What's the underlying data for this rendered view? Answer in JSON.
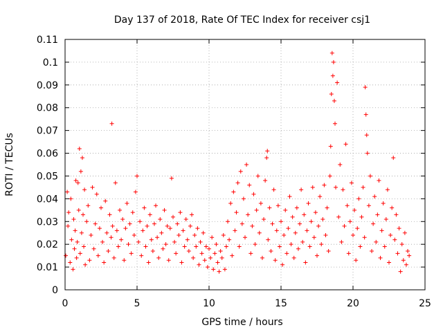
{
  "chart_data": {
    "type": "scatter",
    "title": "Day 137 of 2018, Rate Of TEC Index for receiver csj1",
    "xlabel": "GPS time / hours",
    "ylabel": "ROTI / TECUs",
    "xlim": [
      0,
      25
    ],
    "ylim": [
      0,
      0.11
    ],
    "x_ticks": [
      0,
      5,
      10,
      15,
      20,
      25
    ],
    "x_tick_labels": [
      "0",
      "5",
      "10",
      "15",
      "20",
      "25"
    ],
    "y_ticks": [
      0,
      0.01,
      0.02,
      0.03,
      0.04,
      0.05,
      0.06,
      0.07,
      0.08,
      0.09,
      0.1,
      0.11
    ],
    "y_tick_labels": [
      "0",
      "0.01",
      "0.02",
      "0.03",
      "0.04",
      "0.05",
      "0.06",
      "0.07",
      "0.08",
      "0.09",
      "0.1",
      "0.11"
    ],
    "grid": true,
    "marker": "plus",
    "color": "#ff0000",
    "series": [
      {
        "name": "ROTI",
        "points": [
          [
            0.05,
            0.015
          ],
          [
            0.15,
            0.043
          ],
          [
            0.2,
            0.028
          ],
          [
            0.25,
            0.034
          ],
          [
            0.35,
            0.012
          ],
          [
            0.4,
            0.04
          ],
          [
            0.45,
            0.022
          ],
          [
            0.55,
            0.009
          ],
          [
            0.6,
            0.031
          ],
          [
            0.65,
            0.018
          ],
          [
            0.7,
            0.026
          ],
          [
            0.75,
            0.048
          ],
          [
            0.8,
            0.014
          ],
          [
            0.85,
            0.021
          ],
          [
            0.9,
            0.047
          ],
          [
            0.95,
            0.035
          ],
          [
            1.0,
            0.062
          ],
          [
            1.05,
            0.016
          ],
          [
            1.1,
            0.052
          ],
          [
            1.15,
            0.025
          ],
          [
            1.2,
            0.058
          ],
          [
            1.25,
            0.033
          ],
          [
            1.3,
            0.019
          ],
          [
            1.35,
            0.044
          ],
          [
            1.4,
            0.011
          ],
          [
            1.5,
            0.03
          ],
          [
            1.6,
            0.037
          ],
          [
            1.7,
            0.013
          ],
          [
            1.8,
            0.024
          ],
          [
            1.9,
            0.045
          ],
          [
            2.0,
            0.018
          ],
          [
            2.1,
            0.029
          ],
          [
            2.2,
            0.042
          ],
          [
            2.3,
            0.015
          ],
          [
            2.4,
            0.027
          ],
          [
            2.5,
            0.036
          ],
          [
            2.6,
            0.021
          ],
          [
            2.7,
            0.012
          ],
          [
            2.8,
            0.039
          ],
          [
            2.9,
            0.025
          ],
          [
            3.0,
            0.017
          ],
          [
            3.1,
            0.033
          ],
          [
            3.2,
            0.023
          ],
          [
            3.25,
            0.073
          ],
          [
            3.3,
            0.028
          ],
          [
            3.4,
            0.014
          ],
          [
            3.5,
            0.047
          ],
          [
            3.6,
            0.026
          ],
          [
            3.7,
            0.019
          ],
          [
            3.8,
            0.035
          ],
          [
            3.9,
            0.022
          ],
          [
            4.0,
            0.031
          ],
          [
            4.1,
            0.013
          ],
          [
            4.2,
            0.027
          ],
          [
            4.3,
            0.038
          ],
          [
            4.4,
            0.02
          ],
          [
            4.5,
            0.029
          ],
          [
            4.6,
            0.016
          ],
          [
            4.7,
            0.034
          ],
          [
            4.8,
            0.024
          ],
          [
            4.9,
            0.043
          ],
          [
            5.0,
            0.05
          ],
          [
            5.1,
            0.021
          ],
          [
            5.2,
            0.03
          ],
          [
            5.3,
            0.015
          ],
          [
            5.4,
            0.026
          ],
          [
            5.5,
            0.036
          ],
          [
            5.6,
            0.019
          ],
          [
            5.7,
            0.028
          ],
          [
            5.8,
            0.012
          ],
          [
            5.9,
            0.033
          ],
          [
            6.0,
            0.022
          ],
          [
            6.1,
            0.017
          ],
          [
            6.2,
            0.029
          ],
          [
            6.3,
            0.037
          ],
          [
            6.4,
            0.023
          ],
          [
            6.5,
            0.014
          ],
          [
            6.6,
            0.031
          ],
          [
            6.7,
            0.025
          ],
          [
            6.8,
            0.018
          ],
          [
            6.9,
            0.035
          ],
          [
            7.0,
            0.02
          ],
          [
            7.1,
            0.028
          ],
          [
            7.2,
            0.013
          ],
          [
            7.3,
            0.027
          ],
          [
            7.4,
            0.049
          ],
          [
            7.5,
            0.032
          ],
          [
            7.6,
            0.021
          ],
          [
            7.7,
            0.016
          ],
          [
            7.8,
            0.029
          ],
          [
            7.9,
            0.024
          ],
          [
            8.0,
            0.034
          ],
          [
            8.1,
            0.012
          ],
          [
            8.2,
            0.026
          ],
          [
            8.3,
            0.019
          ],
          [
            8.4,
            0.031
          ],
          [
            8.5,
            0.022
          ],
          [
            8.6,
            0.017
          ],
          [
            8.7,
            0.028
          ],
          [
            8.8,
            0.033
          ],
          [
            8.9,
            0.014
          ],
          [
            9.0,
            0.024
          ],
          [
            9.1,
            0.019
          ],
          [
            9.2,
            0.027
          ],
          [
            9.3,
            0.011
          ],
          [
            9.4,
            0.021
          ],
          [
            9.5,
            0.016
          ],
          [
            9.6,
            0.025
          ],
          [
            9.7,
            0.013
          ],
          [
            9.8,
            0.019
          ],
          [
            9.9,
            0.01
          ],
          [
            10.0,
            0.018
          ],
          [
            10.1,
            0.014
          ],
          [
            10.2,
            0.023
          ],
          [
            10.3,
            0.009
          ],
          [
            10.4,
            0.016
          ],
          [
            10.5,
            0.02
          ],
          [
            10.6,
            0.012
          ],
          [
            10.7,
            0.008
          ],
          [
            10.8,
            0.017
          ],
          [
            10.9,
            0.014
          ],
          [
            11.0,
            0.024
          ],
          [
            11.1,
            0.009
          ],
          [
            11.2,
            0.019
          ],
          [
            11.3,
            0.03
          ],
          [
            11.4,
            0.022
          ],
          [
            11.5,
            0.038
          ],
          [
            11.6,
            0.015
          ],
          [
            11.7,
            0.043
          ],
          [
            11.8,
            0.026
          ],
          [
            11.9,
            0.034
          ],
          [
            12.0,
            0.047
          ],
          [
            12.1,
            0.019
          ],
          [
            12.2,
            0.052
          ],
          [
            12.3,
            0.029
          ],
          [
            12.4,
            0.04
          ],
          [
            12.5,
            0.023
          ],
          [
            12.6,
            0.055
          ],
          [
            12.7,
            0.033
          ],
          [
            12.8,
            0.046
          ],
          [
            12.9,
            0.016
          ],
          [
            13.0,
            0.028
          ],
          [
            13.1,
            0.042
          ],
          [
            13.2,
            0.02
          ],
          [
            13.3,
            0.035
          ],
          [
            13.4,
            0.05
          ],
          [
            13.5,
            0.025
          ],
          [
            13.6,
            0.038
          ],
          [
            13.7,
            0.014
          ],
          [
            13.8,
            0.031
          ],
          [
            13.9,
            0.048
          ],
          [
            14.0,
            0.058
          ],
          [
            14.05,
            0.061
          ],
          [
            14.1,
            0.022
          ],
          [
            14.2,
            0.036
          ],
          [
            14.3,
            0.017
          ],
          [
            14.4,
            0.029
          ],
          [
            14.5,
            0.044
          ],
          [
            14.6,
            0.013
          ],
          [
            14.7,
            0.026
          ],
          [
            14.8,
            0.037
          ],
          [
            14.9,
            0.019
          ],
          [
            15.0,
            0.03
          ],
          [
            15.1,
            0.011
          ],
          [
            15.2,
            0.024
          ],
          [
            15.3,
            0.035
          ],
          [
            15.4,
            0.016
          ],
          [
            15.5,
            0.027
          ],
          [
            15.6,
            0.041
          ],
          [
            15.7,
            0.02
          ],
          [
            15.8,
            0.032
          ],
          [
            15.9,
            0.014
          ],
          [
            16.0,
            0.025
          ],
          [
            16.1,
            0.036
          ],
          [
            16.2,
            0.018
          ],
          [
            16.3,
            0.029
          ],
          [
            16.4,
            0.044
          ],
          [
            16.5,
            0.021
          ],
          [
            16.6,
            0.033
          ],
          [
            16.7,
            0.012
          ],
          [
            16.8,
            0.026
          ],
          [
            16.9,
            0.038
          ],
          [
            17.0,
            0.019
          ],
          [
            17.1,
            0.03
          ],
          [
            17.2,
            0.045
          ],
          [
            17.3,
            0.023
          ],
          [
            17.4,
            0.034
          ],
          [
            17.5,
            0.015
          ],
          [
            17.6,
            0.028
          ],
          [
            17.7,
            0.041
          ],
          [
            17.8,
            0.02
          ],
          [
            17.9,
            0.031
          ],
          [
            18.0,
            0.046
          ],
          [
            18.1,
            0.024
          ],
          [
            18.2,
            0.036
          ],
          [
            18.3,
            0.017
          ],
          [
            18.4,
            0.05
          ],
          [
            18.45,
            0.063
          ],
          [
            18.5,
            0.086
          ],
          [
            18.55,
            0.104
          ],
          [
            18.6,
            0.094
          ],
          [
            18.65,
            0.1
          ],
          [
            18.7,
            0.083
          ],
          [
            18.75,
            0.073
          ],
          [
            18.8,
            0.045
          ],
          [
            18.9,
            0.091
          ],
          [
            19.0,
            0.032
          ],
          [
            19.1,
            0.055
          ],
          [
            19.2,
            0.021
          ],
          [
            19.3,
            0.044
          ],
          [
            19.4,
            0.028
          ],
          [
            19.5,
            0.064
          ],
          [
            19.6,
            0.037
          ],
          [
            19.7,
            0.016
          ],
          [
            19.8,
            0.03
          ],
          [
            19.9,
            0.047
          ],
          [
            20.0,
            0.024
          ],
          [
            20.1,
            0.035
          ],
          [
            20.2,
            0.013
          ],
          [
            20.3,
            0.027
          ],
          [
            20.4,
            0.04
          ],
          [
            20.5,
            0.019
          ],
          [
            20.6,
            0.032
          ],
          [
            20.7,
            0.045
          ],
          [
            20.8,
            0.023
          ],
          [
            20.85,
            0.089
          ],
          [
            20.9,
            0.077
          ],
          [
            20.95,
            0.068
          ],
          [
            21.0,
            0.06
          ],
          [
            21.1,
            0.037
          ],
          [
            21.2,
            0.05
          ],
          [
            21.3,
            0.017
          ],
          [
            21.4,
            0.029
          ],
          [
            21.5,
            0.041
          ],
          [
            21.6,
            0.021
          ],
          [
            21.7,
            0.033
          ],
          [
            21.8,
            0.048
          ],
          [
            21.9,
            0.014
          ],
          [
            22.0,
            0.026
          ],
          [
            22.1,
            0.038
          ],
          [
            22.2,
            0.019
          ],
          [
            22.3,
            0.031
          ],
          [
            22.4,
            0.044
          ],
          [
            22.5,
            0.012
          ],
          [
            22.6,
            0.024
          ],
          [
            22.7,
            0.036
          ],
          [
            22.8,
            0.058
          ],
          [
            22.9,
            0.022
          ],
          [
            23.0,
            0.033
          ],
          [
            23.1,
            0.016
          ],
          [
            23.2,
            0.027
          ],
          [
            23.3,
            0.008
          ],
          [
            23.4,
            0.02
          ],
          [
            23.5,
            0.013
          ],
          [
            23.6,
            0.025
          ],
          [
            23.7,
            0.011
          ],
          [
            23.8,
            0.017
          ],
          [
            23.9,
            0.015
          ]
        ]
      }
    ]
  }
}
